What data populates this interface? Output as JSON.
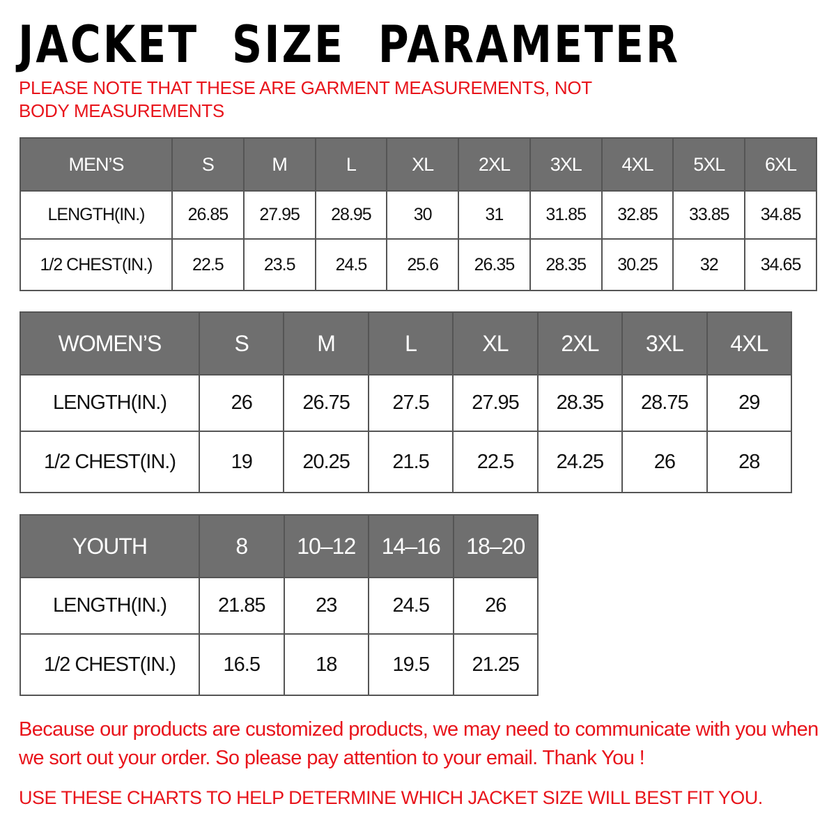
{
  "title": "JACKET  SIZE  PARAMETER",
  "note": "PLEASE NOTE THAT THESE ARE GARMENT MEASUREMENTS, NOT BODY MEASUREMENTS",
  "colors": {
    "header_bg": "#6f6f6f",
    "note_red": "#e8141b"
  },
  "tables": {
    "men": {
      "headers": [
        "MEN’S",
        "S",
        "M",
        "L",
        "XL",
        "2XL",
        "3XL",
        "4XL",
        "5XL",
        "6XL"
      ],
      "rows": [
        [
          "LENGTH(IN.)",
          "26.85",
          "27.95",
          "28.95",
          "30",
          "31",
          "31.85",
          "32.85",
          "33.85",
          "34.85"
        ],
        [
          "1/2 CHEST(IN.)",
          "22.5",
          "23.5",
          "24.5",
          "25.6",
          "26.35",
          "28.35",
          "30.25",
          "32",
          "34.65"
        ]
      ]
    },
    "women": {
      "headers": [
        "WOMEN’S",
        "S",
        "M",
        "L",
        "XL",
        "2XL",
        "3XL",
        "4XL"
      ],
      "rows": [
        [
          "LENGTH(IN.)",
          "26",
          "26.75",
          "27.5",
          "27.95",
          "28.35",
          "28.75",
          "29"
        ],
        [
          "1/2 CHEST(IN.)",
          "19",
          "20.25",
          "21.5",
          "22.5",
          "24.25",
          "26",
          "28"
        ]
      ]
    },
    "youth": {
      "headers": [
        "YOUTH",
        "8",
        "10–12",
        "14–16",
        "18–20"
      ],
      "rows": [
        [
          "LENGTH(IN.)",
          "21.85",
          "23",
          "24.5",
          "26"
        ],
        [
          "1/2 CHEST(IN.)",
          "16.5",
          "18",
          "19.5",
          "21.25"
        ]
      ]
    }
  },
  "footer": {
    "message": "Because our products are customized products, we may need to communicate with you when we sort out your order. So please pay attention to your email. Thank You !",
    "instruction": "USE THESE CHARTS TO HELP DETERMINE WHICH JACKET SIZE WILL BEST FIT YOU."
  }
}
